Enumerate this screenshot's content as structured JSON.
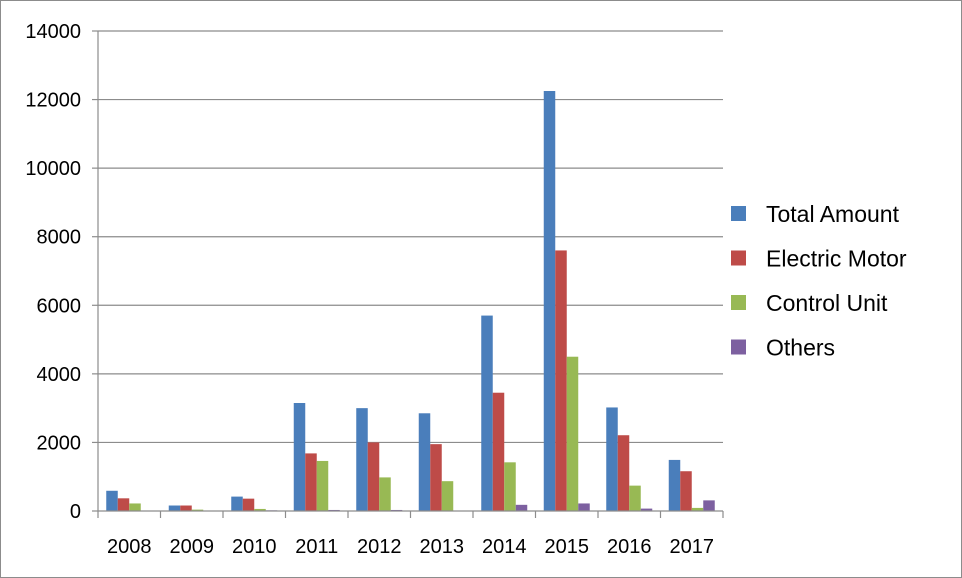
{
  "chart_data": {
    "type": "bar",
    "categories": [
      "2008",
      "2009",
      "2010",
      "2011",
      "2012",
      "2013",
      "2014",
      "2015",
      "2016",
      "2017"
    ],
    "series": [
      {
        "name": "Total Amount",
        "color": "#4a7ebb",
        "values": [
          590,
          160,
          420,
          3150,
          3000,
          2850,
          5700,
          12250,
          3020,
          1490
        ]
      },
      {
        "name": "Electric Motor",
        "color": "#be4b48",
        "values": [
          370,
          160,
          360,
          1680,
          2000,
          1950,
          3450,
          7600,
          2210,
          1160
        ]
      },
      {
        "name": "Control Unit",
        "color": "#98b954",
        "values": [
          220,
          40,
          60,
          1460,
          980,
          870,
          1420,
          4500,
          740,
          90
        ]
      },
      {
        "name": "Others",
        "color": "#7d60a0",
        "values": [
          0,
          0,
          20,
          30,
          30,
          0,
          180,
          220,
          70,
          310
        ]
      }
    ],
    "yticks": [
      0,
      2000,
      4000,
      6000,
      8000,
      10000,
      12000,
      14000
    ],
    "ylim": [
      0,
      14000
    ],
    "title": "",
    "xlabel": "",
    "ylabel": "",
    "grid": true,
    "legend": "right"
  }
}
